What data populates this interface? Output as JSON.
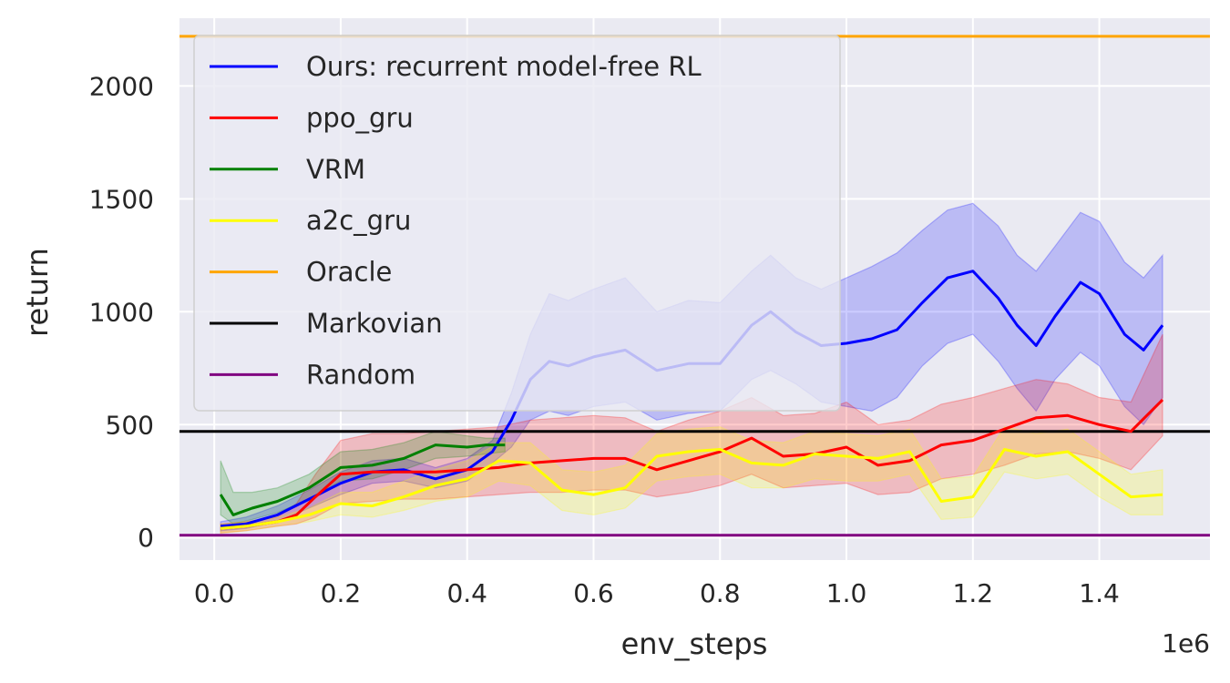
{
  "chart_data": {
    "type": "line",
    "title": "",
    "xlabel": "env_steps",
    "ylabel": "return",
    "x_offset_label": "1e6",
    "xlim": [
      -0.055,
      1.575
    ],
    "ylim": [
      -100,
      2300
    ],
    "x_ticks": [
      0.0,
      0.2,
      0.4,
      0.6,
      0.8,
      1.0,
      1.2,
      1.4
    ],
    "x_tick_labels": [
      "0.0",
      "0.2",
      "0.4",
      "0.6",
      "0.8",
      "1.0",
      "1.2",
      "1.4"
    ],
    "y_ticks": [
      0,
      500,
      1000,
      1500,
      2000
    ],
    "y_tick_labels": [
      "0",
      "500",
      "1000",
      "1500",
      "2000"
    ],
    "grid": true,
    "legend_position": "top-left",
    "series": [
      {
        "name": "Ours: recurrent model-free RL",
        "color": "#0000ff",
        "x": [
          0.01,
          0.05,
          0.1,
          0.15,
          0.2,
          0.25,
          0.3,
          0.35,
          0.4,
          0.44,
          0.47,
          0.5,
          0.53,
          0.56,
          0.6,
          0.65,
          0.7,
          0.75,
          0.8,
          0.85,
          0.88,
          0.92,
          0.96,
          1.0,
          1.04,
          1.08,
          1.12,
          1.16,
          1.2,
          1.24,
          1.27,
          1.3,
          1.33,
          1.37,
          1.4,
          1.44,
          1.47,
          1.5
        ],
        "y": [
          50,
          60,
          100,
          170,
          240,
          290,
          300,
          260,
          300,
          380,
          520,
          700,
          780,
          760,
          800,
          830,
          740,
          770,
          770,
          940,
          1000,
          910,
          850,
          860,
          880,
          920,
          1040,
          1150,
          1180,
          1060,
          940,
          850,
          980,
          1130,
          1080,
          900,
          830,
          940
        ],
        "lower": [
          30,
          40,
          70,
          130,
          190,
          240,
          250,
          220,
          250,
          330,
          400,
          520,
          560,
          540,
          580,
          600,
          520,
          550,
          560,
          700,
          740,
          680,
          600,
          580,
          560,
          620,
          760,
          860,
          900,
          780,
          660,
          560,
          700,
          820,
          760,
          580,
          500,
          620
        ],
        "upper": [
          70,
          90,
          140,
          210,
          290,
          340,
          350,
          310,
          350,
          430,
          640,
          900,
          1080,
          1050,
          1100,
          1150,
          1000,
          1050,
          1040,
          1180,
          1250,
          1150,
          1100,
          1150,
          1200,
          1260,
          1360,
          1450,
          1480,
          1380,
          1250,
          1180,
          1290,
          1440,
          1400,
          1220,
          1150,
          1250
        ]
      },
      {
        "name": "ppo_gru",
        "color": "#ff0000",
        "x": [
          0.01,
          0.05,
          0.1,
          0.13,
          0.16,
          0.2,
          0.25,
          0.3,
          0.35,
          0.4,
          0.45,
          0.5,
          0.55,
          0.6,
          0.65,
          0.7,
          0.75,
          0.8,
          0.85,
          0.9,
          0.95,
          1.0,
          1.05,
          1.1,
          1.15,
          1.2,
          1.25,
          1.3,
          1.35,
          1.4,
          1.45,
          1.5
        ],
        "y": [
          40,
          50,
          70,
          100,
          180,
          280,
          290,
          290,
          290,
          300,
          310,
          330,
          340,
          350,
          350,
          300,
          340,
          380,
          440,
          360,
          370,
          400,
          320,
          340,
          410,
          430,
          480,
          530,
          540,
          500,
          470,
          610
        ],
        "lower": [
          20,
          30,
          50,
          60,
          90,
          150,
          160,
          170,
          170,
          180,
          190,
          200,
          200,
          210,
          210,
          180,
          200,
          230,
          280,
          220,
          230,
          240,
          190,
          200,
          260,
          280,
          320,
          370,
          380,
          350,
          300,
          450
        ],
        "upper": [
          60,
          70,
          90,
          150,
          280,
          430,
          460,
          460,
          470,
          480,
          490,
          520,
          530,
          540,
          530,
          470,
          520,
          560,
          620,
          540,
          550,
          600,
          500,
          520,
          590,
          620,
          660,
          700,
          680,
          620,
          600,
          900
        ]
      },
      {
        "name": "VRM",
        "color": "#008000",
        "x": [
          0.01,
          0.03,
          0.06,
          0.1,
          0.15,
          0.2,
          0.25,
          0.3,
          0.35,
          0.4,
          0.43,
          0.46
        ],
        "y": [
          190,
          100,
          130,
          160,
          220,
          310,
          320,
          350,
          410,
          400,
          410,
          410
        ],
        "lower": [
          100,
          60,
          80,
          110,
          170,
          250,
          260,
          300,
          350,
          360,
          370,
          380
        ],
        "upper": [
          340,
          200,
          200,
          220,
          280,
          380,
          390,
          420,
          470,
          450,
          440,
          440
        ]
      },
      {
        "name": "a2c_gru",
        "color": "#ffff00",
        "x": [
          0.01,
          0.05,
          0.1,
          0.15,
          0.2,
          0.25,
          0.3,
          0.35,
          0.4,
          0.45,
          0.5,
          0.55,
          0.6,
          0.65,
          0.7,
          0.75,
          0.8,
          0.85,
          0.9,
          0.95,
          1.0,
          1.05,
          1.1,
          1.15,
          1.2,
          1.25,
          1.3,
          1.35,
          1.4,
          1.45,
          1.5
        ],
        "y": [
          40,
          50,
          70,
          100,
          150,
          140,
          180,
          230,
          260,
          340,
          330,
          210,
          190,
          220,
          360,
          380,
          390,
          330,
          320,
          370,
          360,
          350,
          380,
          160,
          180,
          390,
          360,
          380,
          280,
          180,
          190
        ],
        "lower": [
          20,
          30,
          50,
          70,
          100,
          90,
          120,
          160,
          180,
          250,
          230,
          120,
          100,
          130,
          250,
          270,
          280,
          220,
          220,
          260,
          250,
          250,
          280,
          80,
          90,
          290,
          260,
          280,
          180,
          100,
          100
        ],
        "upper": [
          60,
          70,
          90,
          130,
          200,
          200,
          250,
          300,
          340,
          420,
          420,
          300,
          290,
          320,
          460,
          480,
          490,
          430,
          420,
          470,
          460,
          450,
          480,
          260,
          270,
          490,
          460,
          480,
          380,
          280,
          300
        ]
      }
    ],
    "reference_lines": [
      {
        "name": "Oracle",
        "color": "#ffa500",
        "y": 2220
      },
      {
        "name": "Markovian",
        "color": "#000000",
        "y": 470
      },
      {
        "name": "Random",
        "color": "#800080",
        "y": 10
      }
    ]
  }
}
